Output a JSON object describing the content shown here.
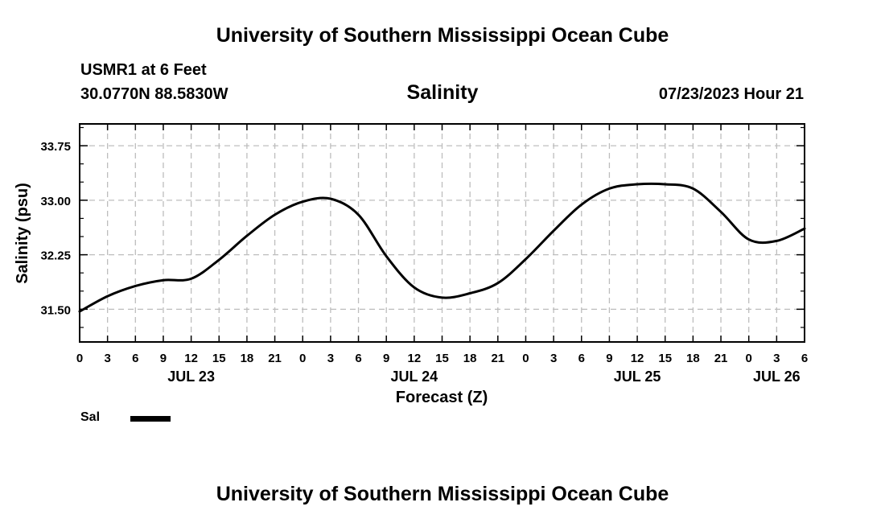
{
  "header": {
    "institution": "University of Southern Mississippi Ocean Cube",
    "station": "USMR1 at 6 Feet",
    "coordinates": "30.0770N  88.5830W",
    "timestamp": "07/23/2023 Hour 21",
    "footer": "University of Southern Mississippi Ocean Cube"
  },
  "chart_data": {
    "type": "line",
    "title": "Salinity",
    "xlabel": "Forecast (Z)",
    "ylabel": "Salinity (psu)",
    "xlim": [
      0,
      78
    ],
    "ylim": [
      31.05,
      34.05
    ],
    "x_tick_step_hours": 3,
    "x_tick_labels": [
      "0",
      "3",
      "6",
      "9",
      "12",
      "15",
      "18",
      "21",
      "0",
      "3",
      "6",
      "9",
      "12",
      "15",
      "18",
      "21",
      "0",
      "3",
      "6",
      "9",
      "12",
      "15",
      "18",
      "21",
      "0",
      "3",
      "6"
    ],
    "date_labels": [
      {
        "hour": 12,
        "label": "JUL 23"
      },
      {
        "hour": 36,
        "label": "JUL 24"
      },
      {
        "hour": 60,
        "label": "JUL 25"
      },
      {
        "hour": 75,
        "label": "JUL 26"
      }
    ],
    "y_ticks": [
      31.5,
      32.25,
      33.0,
      33.75
    ],
    "y_tick_labels": [
      "31.50",
      "32.25",
      "33.00",
      "33.75"
    ],
    "grid": true,
    "legend": {
      "position": "bottom-left",
      "entries": [
        "Sal"
      ]
    },
    "series": [
      {
        "name": "Sal",
        "color": "#000000",
        "x": [
          0,
          3,
          6,
          9,
          12,
          15,
          18,
          21,
          24,
          27,
          30,
          33,
          36,
          39,
          42,
          45,
          48,
          51,
          54,
          57,
          60,
          63,
          66,
          69,
          72,
          75,
          78
        ],
        "y": [
          31.47,
          31.68,
          31.82,
          31.9,
          31.92,
          32.18,
          32.51,
          32.8,
          32.98,
          33.02,
          32.8,
          32.23,
          31.8,
          31.66,
          31.72,
          31.86,
          32.19,
          32.58,
          32.94,
          33.16,
          33.22,
          33.22,
          33.16,
          32.84,
          32.46,
          32.44,
          32.61
        ]
      }
    ]
  }
}
